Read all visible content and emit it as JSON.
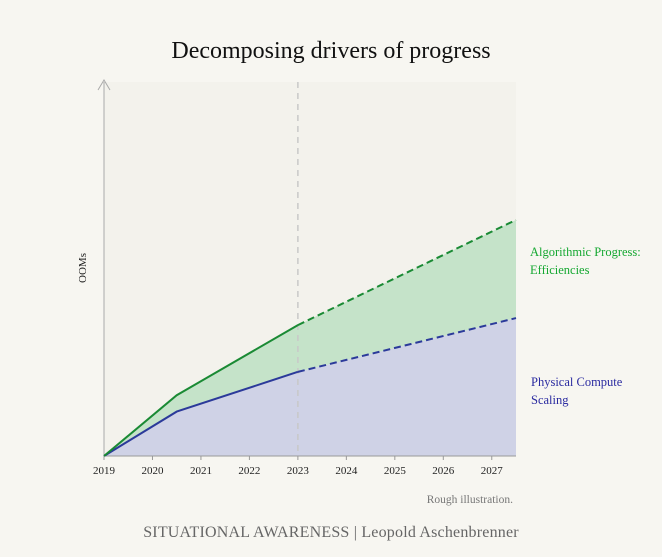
{
  "chart_data": {
    "type": "area",
    "title": "Decomposing drivers of progress",
    "ylabel": "OOMs",
    "xlabel": "",
    "x_ticks": [
      "2019",
      "2020",
      "2021",
      "2022",
      "2023",
      "2024",
      "2025",
      "2026",
      "2027"
    ],
    "xlim": [
      2019,
      2027.5
    ],
    "ylim": [
      0,
      8
    ],
    "dashed_from": 2023,
    "series": [
      {
        "name": "Physical Compute Scaling",
        "color": "#2b3a9a",
        "fill": "#cfd2e6",
        "x": [
          2019,
          2020.5,
          2023,
          2027.5
        ],
        "y": [
          0,
          0.95,
          1.8,
          2.95
        ]
      },
      {
        "name": "Algorithmic Progress: Efficiencies",
        "color": "#1a8a34",
        "fill": "#c5e3c9",
        "x": [
          2019,
          2020.5,
          2023,
          2027.5
        ],
        "y": [
          0,
          1.3,
          2.8,
          5.05
        ]
      }
    ],
    "labels": {
      "green_line1": "Algorithmic Progress:",
      "green_line2": "Efficiencies",
      "blue_line1": "Physical Compute",
      "blue_line2": "Scaling"
    },
    "annotation": "Rough illustration."
  },
  "footer": "SITUATIONAL AWARENESS | Leopold Aschenbrenner"
}
